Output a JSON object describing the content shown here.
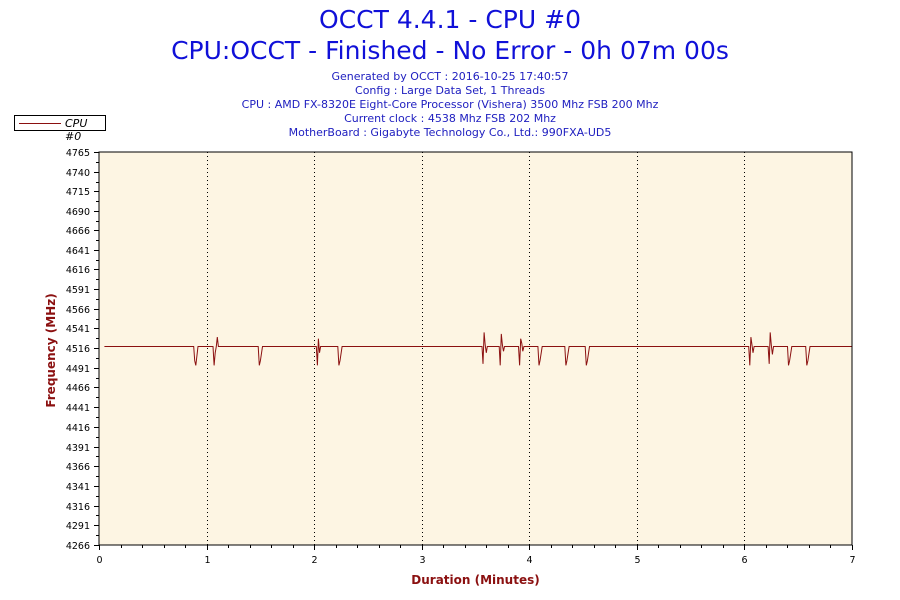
{
  "header": {
    "title": "OCCT 4.4.1 - CPU #0",
    "subtitle": "CPU:OCCT - Finished - No Error - 0h 07m 00s",
    "info": [
      "Generated by OCCT : 2016-10-25 17:40:57",
      "Config : Large Data Set, 1 Threads",
      "CPU : AMD FX-8320E Eight-Core Processor (Vishera) 3500 Mhz FSB 200 Mhz",
      "Current clock : 4538 Mhz FSB 202 Mhz",
      "MotherBoard : Gigabyte Technology Co., Ltd.: 990FXA-UD5"
    ]
  },
  "legend": {
    "label": "CPU #0"
  },
  "colors": {
    "series": "#8b1010",
    "plot_bg": "#fdf5e3",
    "title": "#1010d8",
    "info": "#2020c0"
  },
  "chart_data": {
    "type": "line",
    "xlabel": "Duration (Minutes)",
    "ylabel": "Frequency (MHz)",
    "xlim": [
      0,
      7
    ],
    "ylim": [
      4266,
      4765
    ],
    "xticks": [
      0,
      1,
      2,
      3,
      4,
      5,
      6,
      7
    ],
    "yticks": [
      4266,
      4291,
      4316,
      4341,
      4366,
      4391,
      4416,
      4441,
      4466,
      4491,
      4516,
      4541,
      4566,
      4591,
      4616,
      4641,
      4666,
      4690,
      4715,
      4740,
      4765
    ],
    "grid": "vertical dotted",
    "legend_position": "top-left",
    "series": [
      {
        "name": "CPU #0",
        "baseline": 4518,
        "x": [
          0.05,
          0.88,
          0.89,
          0.9,
          0.92,
          1.06,
          1.07,
          1.08,
          1.09,
          1.1,
          1.11,
          1.12,
          1.48,
          1.49,
          1.5,
          1.52,
          2.02,
          2.03,
          2.04,
          2.05,
          2.06,
          2.07,
          2.22,
          2.23,
          2.24,
          2.26,
          3.56,
          3.57,
          3.58,
          3.59,
          3.6,
          3.61,
          3.62,
          3.72,
          3.73,
          3.74,
          3.75,
          3.76,
          3.77,
          3.78,
          3.9,
          3.91,
          3.92,
          3.93,
          3.94,
          3.95,
          3.96,
          4.08,
          4.09,
          4.1,
          4.12,
          4.33,
          4.34,
          4.35,
          4.37,
          4.52,
          4.53,
          4.54,
          4.56,
          6.04,
          6.05,
          6.06,
          6.07,
          6.08,
          6.09,
          6.1,
          6.22,
          6.23,
          6.24,
          6.25,
          6.26,
          6.27,
          6.28,
          6.4,
          6.41,
          6.42,
          6.44,
          6.57,
          6.58,
          6.59,
          6.61,
          7.0
        ],
        "y": [
          4518,
          4518,
          4500,
          4494,
          4518,
          4518,
          4494,
          4510,
          4518,
          4530,
          4518,
          4518,
          4518,
          4494,
          4500,
          4518,
          4518,
          4494,
          4528,
          4510,
          4518,
          4518,
          4518,
          4494,
          4500,
          4518,
          4518,
          4496,
          4536,
          4520,
          4510,
          4518,
          4518,
          4518,
          4494,
          4534,
          4520,
          4512,
          4518,
          4518,
          4518,
          4494,
          4528,
          4522,
          4512,
          4518,
          4518,
          4518,
          4494,
          4500,
          4518,
          4518,
          4494,
          4500,
          4518,
          4518,
          4494,
          4500,
          4518,
          4518,
          4494,
          4530,
          4520,
          4510,
          4518,
          4518,
          4518,
          4496,
          4536,
          4520,
          4508,
          4518,
          4518,
          4518,
          4494,
          4500,
          4518,
          4518,
          4494,
          4500,
          4518,
          4518
        ]
      }
    ]
  }
}
